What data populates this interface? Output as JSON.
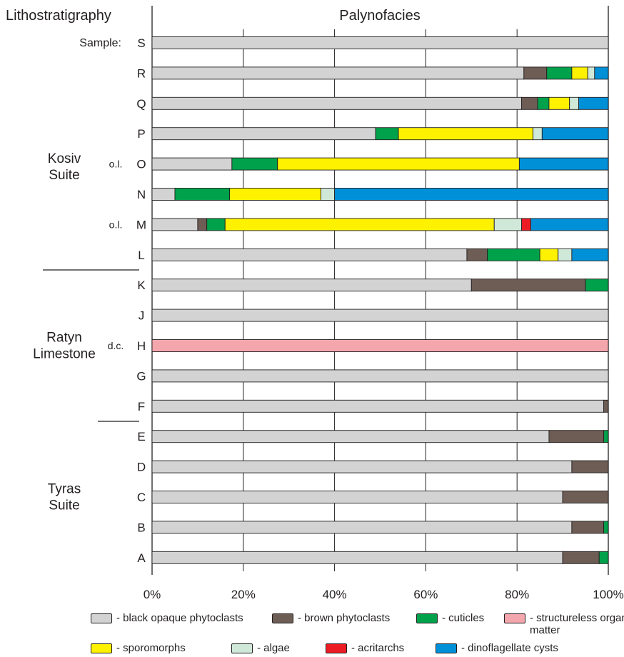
{
  "chart_data": {
    "type": "bar",
    "orientation": "horizontal",
    "stacked": true,
    "title": "Palynofacies",
    "left_header": "Lithostratigraphy",
    "sample_label": "Sample:",
    "x_ticks": [
      "0%",
      "20%",
      "40%",
      "60%",
      "80%",
      "100%"
    ],
    "xlim": [
      0,
      100
    ],
    "grid": "vertical",
    "categories": [
      "S",
      "R",
      "Q",
      "P",
      "O",
      "N",
      "M",
      "L",
      "K",
      "J",
      "H",
      "G",
      "F",
      "E",
      "D",
      "C",
      "B",
      "A"
    ],
    "row_notes": {
      "O": "o.l.",
      "M": "o.l.",
      "H": "d.c."
    },
    "units": [
      {
        "name": "Kosiv Suite",
        "lines": [
          "Kosiv",
          "Suite"
        ],
        "samples": [
          "S",
          "R",
          "Q",
          "P",
          "O",
          "N",
          "M",
          "L"
        ]
      },
      {
        "name": "Ratyn Limestone",
        "lines": [
          "Ratyn",
          "Limestone"
        ],
        "samples": [
          "K",
          "J",
          "H",
          "G",
          "F"
        ]
      },
      {
        "name": "Tyras Suite",
        "lines": [
          "Tyras",
          "Suite"
        ],
        "samples": [
          "E",
          "D",
          "C",
          "B",
          "A"
        ]
      }
    ],
    "series": [
      {
        "name": "black opaque phytoclasts",
        "color": "#d3d3d3",
        "values": [
          100,
          81.5,
          81,
          49,
          17.5,
          5,
          10,
          69,
          70,
          100,
          0,
          100,
          99,
          87,
          92,
          90,
          92,
          90
        ]
      },
      {
        "name": "brown phytoclasts",
        "color": "#6d5d55",
        "values": [
          0,
          5,
          3.5,
          0,
          0,
          0,
          2,
          4.5,
          25,
          0,
          0,
          0,
          1,
          12,
          8,
          10,
          7,
          8
        ]
      },
      {
        "name": "cuticles",
        "color": "#00a14b",
        "values": [
          0,
          5.5,
          2.5,
          5,
          10,
          12,
          4,
          11.5,
          5,
          0,
          0,
          0,
          0,
          1,
          0,
          0,
          1,
          2
        ]
      },
      {
        "name": "structureless organic matter",
        "color": "#f4a6ad",
        "values": [
          0,
          0,
          0,
          0,
          0,
          0,
          0,
          0,
          0,
          0,
          100,
          0,
          0,
          0,
          0,
          0,
          0,
          0
        ]
      },
      {
        "name": "sporomorphs",
        "color": "#fff200",
        "values": [
          0,
          3.5,
          4.5,
          29.5,
          53,
          20,
          59,
          4,
          0,
          0,
          0,
          0,
          0,
          0,
          0,
          0,
          0,
          0
        ]
      },
      {
        "name": "algae",
        "color": "#cfe8d8",
        "values": [
          0,
          1.5,
          2,
          2,
          0,
          3,
          6,
          3,
          0,
          0,
          0,
          0,
          0,
          0,
          0,
          0,
          0,
          0
        ]
      },
      {
        "name": "acritarchs",
        "color": "#ed1c24",
        "values": [
          0,
          0,
          0,
          0,
          0,
          0,
          2,
          0,
          0,
          0,
          0,
          0,
          0,
          0,
          0,
          0,
          0,
          0
        ]
      },
      {
        "name": "dinoflagellate cysts",
        "color": "#0090d8",
        "values": [
          0,
          3,
          6.5,
          14.5,
          19.5,
          60,
          17,
          8,
          0,
          0,
          0,
          0,
          0,
          0,
          0,
          0,
          0,
          0
        ]
      }
    ],
    "legend": {
      "placement": "bottom",
      "rows": [
        [
          {
            "series": 0,
            "label": "- black opaque phytoclasts"
          },
          {
            "series": 1,
            "label": "- brown phytoclasts"
          },
          {
            "series": 2,
            "label": "- cuticles"
          },
          {
            "series": 3,
            "label": "- structureless organic matter"
          }
        ],
        [
          {
            "series": 4,
            "label": "- sporomorphs"
          },
          {
            "series": 5,
            "label": "- algae"
          },
          {
            "series": 6,
            "label": "- acritarchs"
          },
          {
            "series": 7,
            "label": "- dinoflagellate cysts"
          }
        ]
      ]
    }
  }
}
